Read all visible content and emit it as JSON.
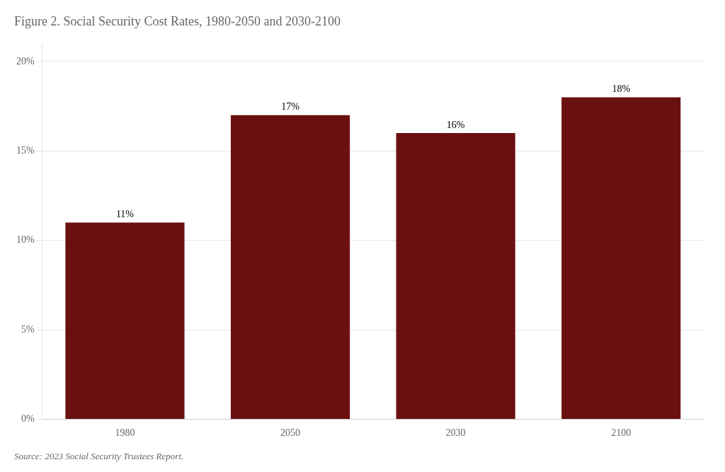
{
  "chart_data": {
    "type": "bar",
    "title": "Figure 2. Social Security Cost Rates, 1980-2050 and 2030-2100",
    "annotations": [
      "Source: 2023 Social Security Trustees Report."
    ],
    "categories": [
      "1980",
      "2050",
      "2030",
      "2100"
    ],
    "values": [
      11,
      17,
      16,
      18
    ],
    "value_labels": [
      "11%",
      "17%",
      "16%",
      "18%"
    ],
    "data_labels": true,
    "color": "#6B1010",
    "ylim": [
      0,
      21
    ],
    "yticks": [
      {
        "value": 0,
        "label": "0%"
      },
      {
        "value": 5,
        "label": "5%"
      },
      {
        "value": 10,
        "label": "10%"
      },
      {
        "value": 15,
        "label": "15%"
      },
      {
        "value": 20,
        "label": "20%"
      }
    ],
    "grid": true
  }
}
